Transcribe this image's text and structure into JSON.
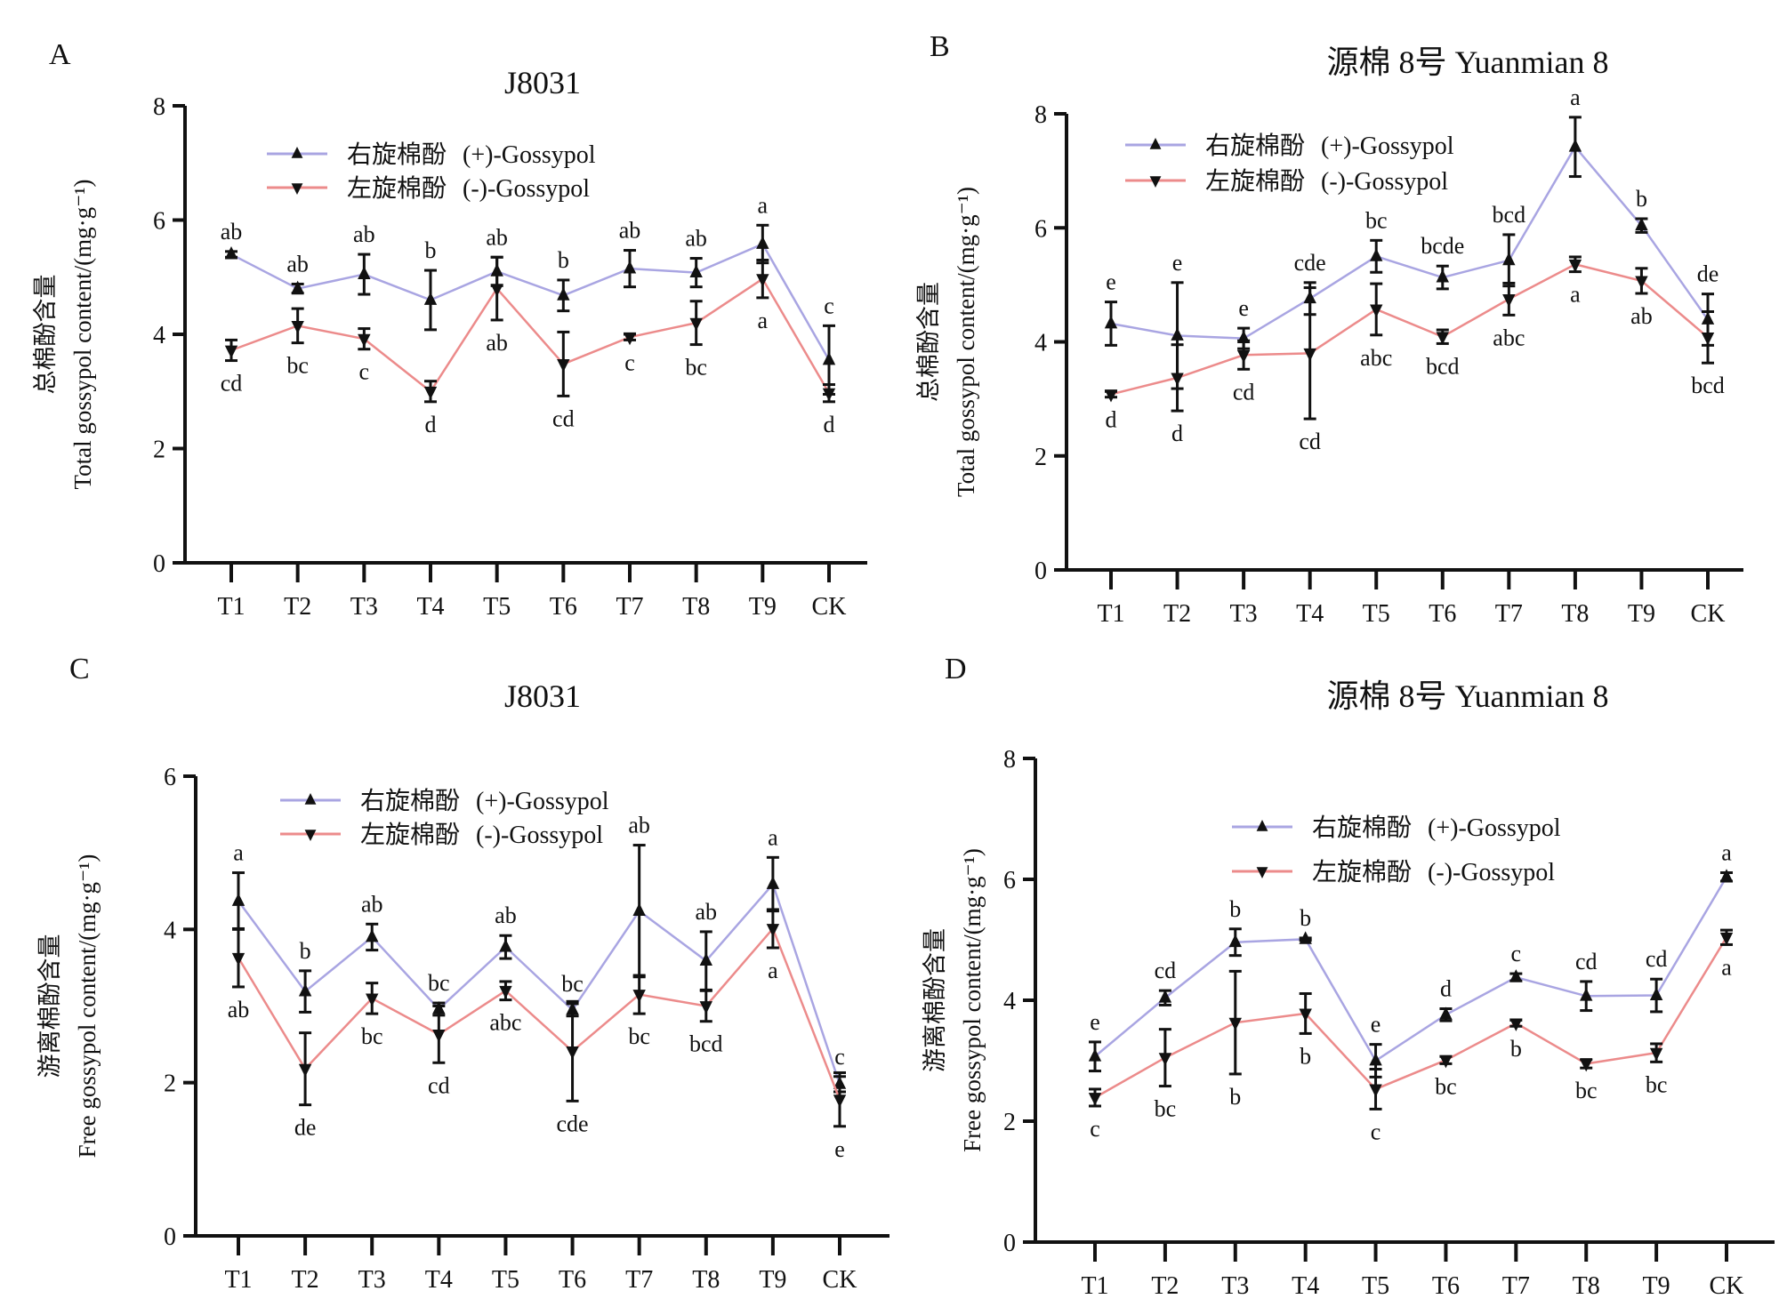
{
  "figure": {
    "colors": {
      "plus": "#a9a5e2",
      "minus": "#ec8b8b",
      "marker": "#111111"
    }
  },
  "chart_data": [
    {
      "panel": "A",
      "type": "line",
      "title": "J8031",
      "ylabel_cn": "总棉酚含量",
      "ylabel": "Total gossypol content/(mg·g⁻¹)",
      "ylim": [
        0,
        8
      ],
      "yticks": [
        "0",
        "2",
        "4",
        "6",
        "8"
      ],
      "categories": [
        "T1",
        "T2",
        "T3",
        "T4",
        "T5",
        "T6",
        "T7",
        "T8",
        "T9",
        "CK"
      ],
      "legend": "top-center",
      "series": [
        {
          "name": "右旋棉酚 (+)-Gossypol",
          "legend_cn": "右旋棉酚",
          "legend_en": "(+)-Gossypol",
          "marker": "triangle-up",
          "values": [
            5.4,
            4.8,
            5.05,
            4.6,
            5.1,
            4.68,
            5.15,
            5.08,
            5.58,
            3.55
          ],
          "errors": [
            0.05,
            0.08,
            0.35,
            0.52,
            0.25,
            0.27,
            0.32,
            0.25,
            0.33,
            0.6
          ],
          "letters": [
            "ab",
            "ab",
            "ab",
            "b",
            "ab",
            "b",
            "ab",
            "ab",
            "a",
            "c"
          ]
        },
        {
          "name": "左旋棉酚 (-)-Gossypol",
          "legend_cn": "左旋棉酚",
          "legend_en": "(-)-Gossypol",
          "marker": "triangle-down",
          "values": [
            3.72,
            4.15,
            3.92,
            3.0,
            4.8,
            3.48,
            3.95,
            4.2,
            4.97,
            2.97
          ],
          "errors": [
            0.18,
            0.3,
            0.18,
            0.18,
            0.55,
            0.56,
            0.05,
            0.38,
            0.33,
            0.15
          ],
          "letters": [
            "cd",
            "bc",
            "c",
            "d",
            "ab",
            "cd",
            "c",
            "bc",
            "a",
            "d"
          ]
        }
      ]
    },
    {
      "panel": "B",
      "type": "line",
      "title": "源棉 8号 Yuanmian 8",
      "ylabel_cn": "总棉酚含量",
      "ylabel": "Total gossypol content/(mg·g⁻¹)",
      "ylim": [
        0,
        8
      ],
      "yticks": [
        "0",
        "2",
        "4",
        "6",
        "8"
      ],
      "categories": [
        "T1",
        "T2",
        "T3",
        "T4",
        "T5",
        "T6",
        "T7",
        "T8",
        "T9",
        "CK"
      ],
      "legend": "top-left",
      "series": [
        {
          "name": "右旋棉酚 (+)-Gossypol",
          "legend_cn": "右旋棉酚",
          "legend_en": "(+)-Gossypol",
          "marker": "triangle-up",
          "values": [
            4.32,
            4.11,
            4.06,
            4.76,
            5.5,
            5.13,
            5.43,
            7.42,
            6.04,
            4.39
          ],
          "errors": [
            0.38,
            0.93,
            0.18,
            0.28,
            0.28,
            0.2,
            0.45,
            0.52,
            0.12,
            0.45
          ],
          "letters": [
            "e",
            "e",
            "e",
            "cde",
            "bc",
            "bcde",
            "bcd",
            "a",
            "b",
            "de"
          ]
        },
        {
          "name": "左旋棉酚 (-)-Gossypol",
          "legend_cn": "左旋棉酚",
          "legend_en": "(-)-Gossypol",
          "marker": "triangle-down",
          "values": [
            3.08,
            3.37,
            3.77,
            3.8,
            4.57,
            4.09,
            4.75,
            5.36,
            5.07,
            4.08
          ],
          "errors": [
            0.05,
            0.58,
            0.25,
            1.15,
            0.45,
            0.12,
            0.28,
            0.13,
            0.22,
            0.45
          ],
          "letters": [
            "d",
            "d",
            "cd",
            "cd",
            "abc",
            "bcd",
            "abc",
            "a",
            "ab",
            "bcd"
          ]
        }
      ]
    },
    {
      "panel": "C",
      "type": "line",
      "title": "J8031",
      "ylabel_cn": "游离棉酚含量",
      "ylabel": "Free gossypol content/(mg·g⁻¹)",
      "ylim": [
        0,
        6
      ],
      "yticks": [
        "0",
        "2",
        "4",
        "6"
      ],
      "categories": [
        "T1",
        "T2",
        "T3",
        "T4",
        "T5",
        "T6",
        "T7",
        "T8",
        "T9",
        "CK"
      ],
      "legend": "top-center",
      "series": [
        {
          "name": "右旋棉酚 (+)-Gossypol",
          "legend_cn": "右旋棉酚",
          "legend_en": "(+)-Gossypol",
          "marker": "triangle-up",
          "values": [
            4.37,
            3.19,
            3.9,
            2.96,
            3.77,
            2.95,
            4.24,
            3.59,
            4.59,
            1.98
          ],
          "errors": [
            0.37,
            0.27,
            0.17,
            0.08,
            0.15,
            0.08,
            0.86,
            0.38,
            0.35,
            0.1
          ],
          "letters": [
            "a",
            "b",
            "ab",
            "bc",
            "ab",
            "bc",
            "ab",
            "ab",
            "a",
            "c"
          ]
        },
        {
          "name": "左旋棉酚 (-)-Gossypol",
          "legend_cn": "左旋棉酚",
          "legend_en": "(-)-Gossypol",
          "marker": "triangle-down",
          "values": [
            3.63,
            2.18,
            3.1,
            2.63,
            3.2,
            2.41,
            3.15,
            3.0,
            4.01,
            1.78
          ],
          "errors": [
            0.38,
            0.47,
            0.2,
            0.37,
            0.12,
            0.65,
            0.25,
            0.2,
            0.25,
            0.35
          ],
          "letters": [
            "ab",
            "de",
            "bc",
            "cd",
            "abc",
            "cde",
            "bc",
            "bcd",
            "a",
            "e"
          ]
        }
      ]
    },
    {
      "panel": "D",
      "type": "line",
      "title": "源棉 8号 Yuanmian 8",
      "ylabel_cn": "游离棉酚含量",
      "ylabel": "Free gossypol content/(mg·g⁻¹)",
      "ylim": [
        0,
        8
      ],
      "yticks": [
        "0",
        "2",
        "4",
        "6",
        "8"
      ],
      "categories": [
        "T1",
        "T2",
        "T3",
        "T4",
        "T5",
        "T6",
        "T7",
        "T8",
        "T9",
        "CK"
      ],
      "legend": "top-center",
      "series": [
        {
          "name": "右旋棉酚 (+)-Gossypol",
          "legend_cn": "右旋棉酚",
          "legend_en": "(+)-Gossypol",
          "marker": "triangle-up",
          "values": [
            3.07,
            4.04,
            4.96,
            5.01,
            3.0,
            3.76,
            4.38,
            4.07,
            4.08,
            6.04
          ],
          "errors": [
            0.24,
            0.12,
            0.22,
            0.02,
            0.27,
            0.1,
            0.06,
            0.24,
            0.27,
            0.07
          ],
          "letters": [
            "e",
            "cd",
            "b",
            "b",
            "e",
            "d",
            "c",
            "cd",
            "cd",
            "a"
          ]
        },
        {
          "name": "左旋棉酚 (-)-Gossypol",
          "legend_cn": "左旋棉酚",
          "legend_en": "(-)-Gossypol",
          "marker": "triangle-down",
          "values": [
            2.39,
            3.05,
            3.63,
            3.78,
            2.53,
            3.01,
            3.62,
            2.95,
            3.13,
            5.04
          ],
          "errors": [
            0.14,
            0.47,
            0.85,
            0.33,
            0.33,
            0.06,
            0.05,
            0.07,
            0.15,
            0.12
          ],
          "letters": [
            "c",
            "bc",
            "b",
            "b",
            "c",
            "bc",
            "b",
            "bc",
            "bc",
            "a"
          ]
        }
      ]
    }
  ]
}
